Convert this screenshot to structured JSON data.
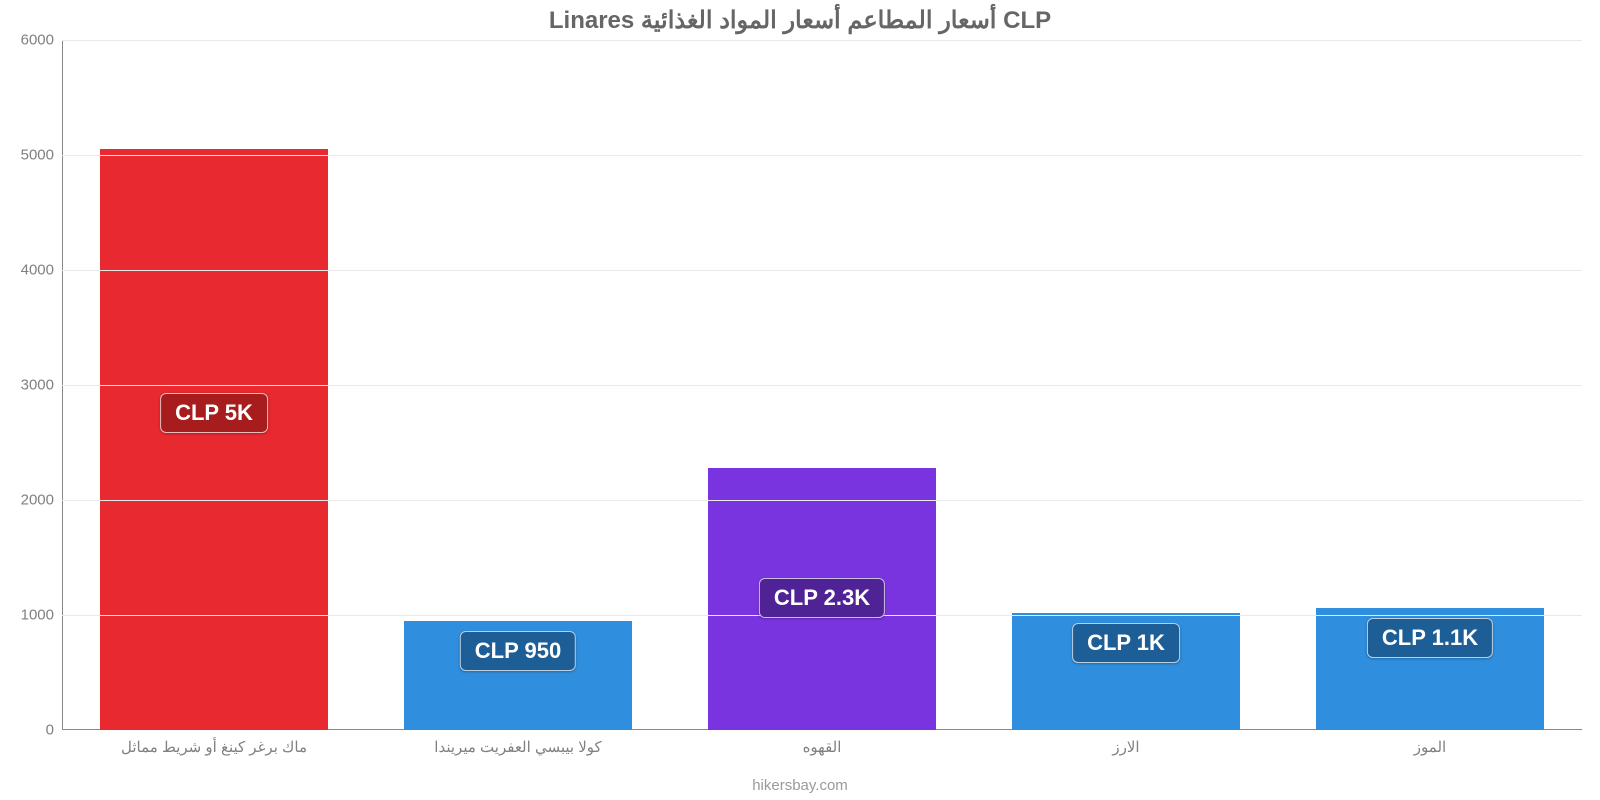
{
  "chart": {
    "type": "bar",
    "title": "Linares أسعار المطاعم أسعار المواد الغذائية CLP",
    "title_fontsize": 24,
    "title_color": "#666666",
    "source": "hikersbay.com",
    "source_fontsize": 15,
    "source_color": "#9a9a9a",
    "background_color": "#ffffff",
    "grid_color": "#e9e9e9",
    "axis_color": "#888888",
    "tick_color": "#808080",
    "tick_fontsize": 15,
    "ylim": [
      0,
      6000
    ],
    "ytick_step": 1000,
    "yticks": [
      "0",
      "1000",
      "2000",
      "3000",
      "4000",
      "5000",
      "6000"
    ],
    "bar_width": 0.75,
    "badge_fontsize": 22,
    "badge_text_color": "#ffffff",
    "categories": [
      "ماك برغر كينغ أو شريط مماثل",
      "كولا بيبسي العفريت ميريندا",
      "القهوه",
      "الارز",
      "الموز"
    ],
    "values": [
      5050,
      950,
      2280,
      1020,
      1060
    ],
    "value_labels": [
      "CLP 5K",
      "CLP 950",
      "CLP 2.3K",
      "CLP 1K",
      "CLP 1.1K"
    ],
    "bar_colors": [
      "#e82930",
      "#2f8edd",
      "#7934e0",
      "#2f8edd",
      "#2f8edd"
    ],
    "badge_colors": [
      "#a71c1c",
      "#1e5e96",
      "#4f2296",
      "#1e5e96",
      "#1e5e96"
    ]
  }
}
